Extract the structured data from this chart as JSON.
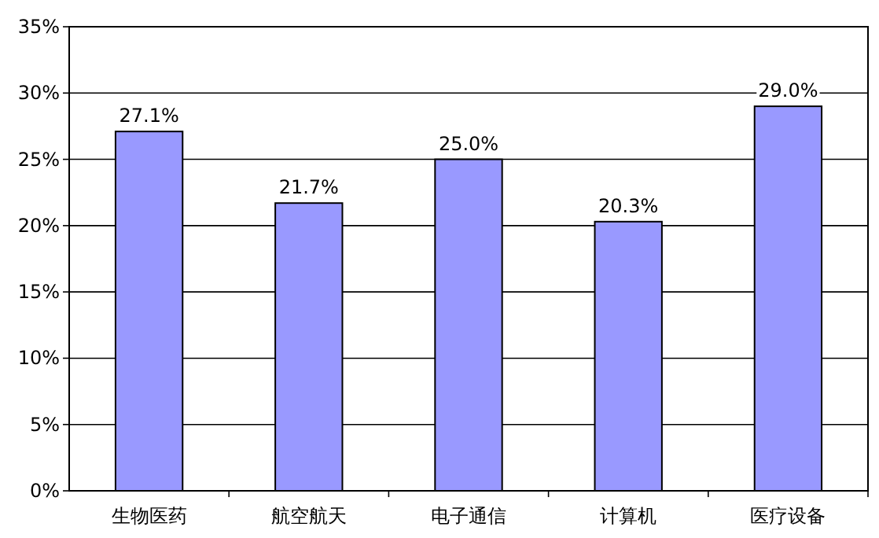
{
  "chart_data": {
    "type": "bar",
    "categories": [
      "生物医药",
      "航空航天",
      "电子通信",
      "计算机",
      "医疗设备"
    ],
    "values": [
      27.1,
      21.7,
      25.0,
      20.3,
      29.0
    ],
    "value_labels": [
      "27.1%",
      "21.7%",
      "25.0%",
      "20.3%",
      "29.0%"
    ],
    "color": "#9999ff",
    "ylim": [
      0,
      35
    ],
    "yticks": [
      {
        "value": 0,
        "label": "0%"
      },
      {
        "value": 5,
        "label": "5%"
      },
      {
        "value": 10,
        "label": "10%"
      },
      {
        "value": 15,
        "label": "15%"
      },
      {
        "value": 20,
        "label": "20%"
      },
      {
        "value": 25,
        "label": "25%"
      },
      {
        "value": 30,
        "label": "30%"
      },
      {
        "value": 35,
        "label": "35%"
      }
    ],
    "grid": "y"
  }
}
